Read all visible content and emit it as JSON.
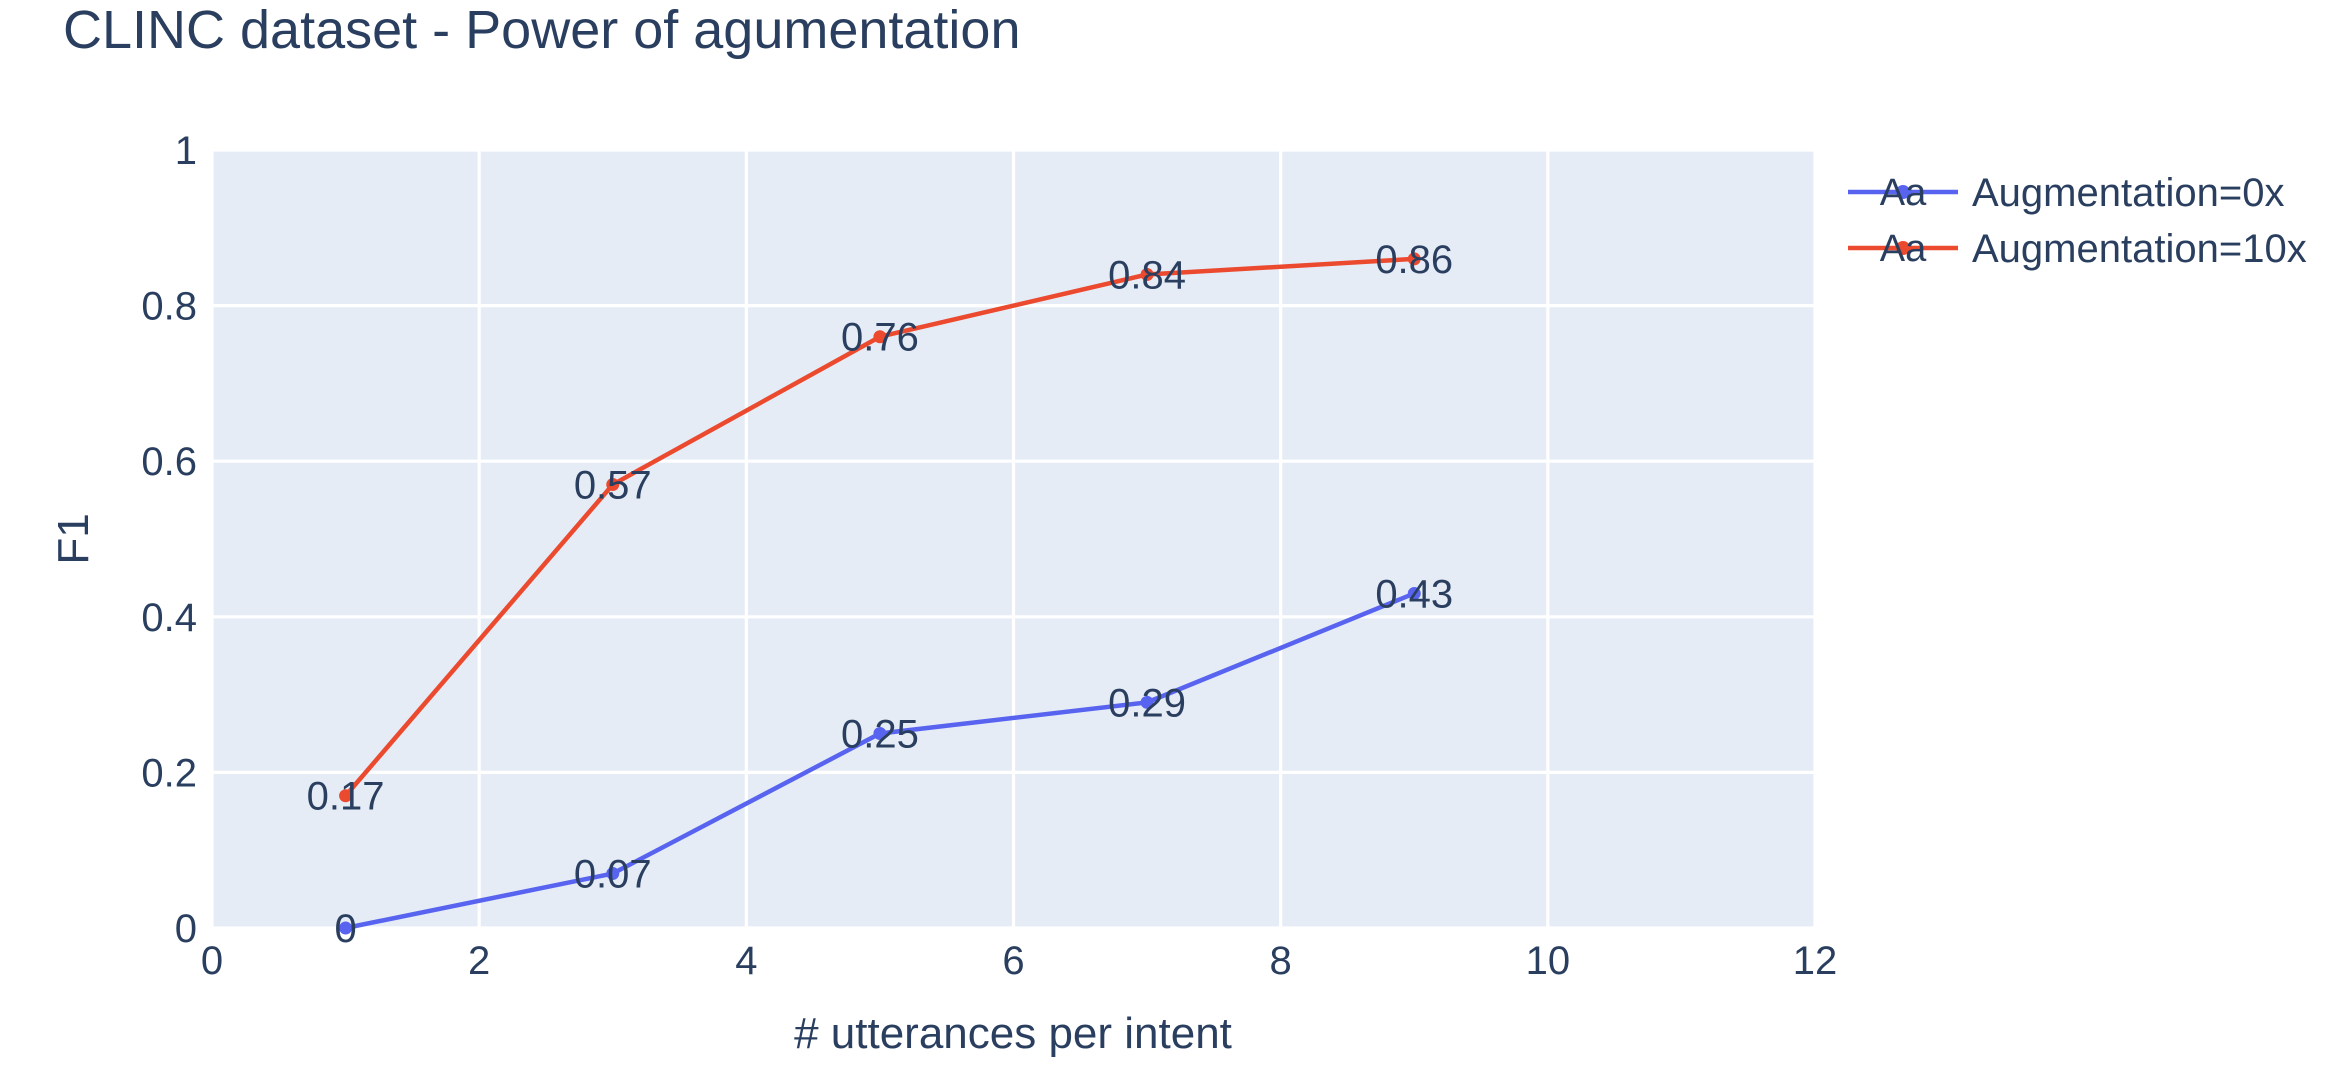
{
  "title": "CLINC dataset - Power of agumentation",
  "colors": {
    "background": "#ffffff",
    "plot_background": "#E5ECF6",
    "grid": "#ffffff",
    "font": "#2a3f5f",
    "series_blue": "#5864F0",
    "series_red": "#EB4A2F"
  },
  "legend": {
    "sample_text": "Aa",
    "entries": [
      {
        "label": "Augmentation=0x",
        "color": "#5864F0"
      },
      {
        "label": "Augmentation=10x",
        "color": "#EB4A2F"
      }
    ]
  },
  "chart_data": {
    "type": "line",
    "title": "CLINC dataset - Power of agumentation",
    "xlabel": "# utterances per intent",
    "ylabel": "F1",
    "xlim": [
      0,
      12
    ],
    "ylim": [
      0,
      1
    ],
    "grid": true,
    "legend_position": "outside-top-right",
    "x": [
      1,
      3,
      5,
      7,
      9
    ],
    "series": [
      {
        "name": "Augmentation=0x",
        "color": "#5864F0",
        "values": [
          0,
          0.07,
          0.25,
          0.29,
          0.43
        ],
        "labels": [
          "0",
          "0.07",
          "0.25",
          "0.29",
          "0.43"
        ]
      },
      {
        "name": "Augmentation=10x",
        "color": "#EB4A2F",
        "values": [
          0.17,
          0.57,
          0.76,
          0.84,
          0.86
        ],
        "labels": [
          "0.17",
          "0.57",
          "0.76",
          "0.84",
          "0.86"
        ]
      }
    ],
    "xticks": {
      "values": [
        0,
        2,
        4,
        6,
        8,
        10,
        12
      ],
      "labels": [
        "0",
        "2",
        "4",
        "6",
        "8",
        "10",
        "12"
      ]
    },
    "yticks": {
      "values": [
        0,
        0.2,
        0.4,
        0.6,
        0.8,
        1
      ],
      "labels": [
        "0",
        "0.2",
        "0.4",
        "0.6",
        "0.8",
        "1"
      ]
    }
  }
}
